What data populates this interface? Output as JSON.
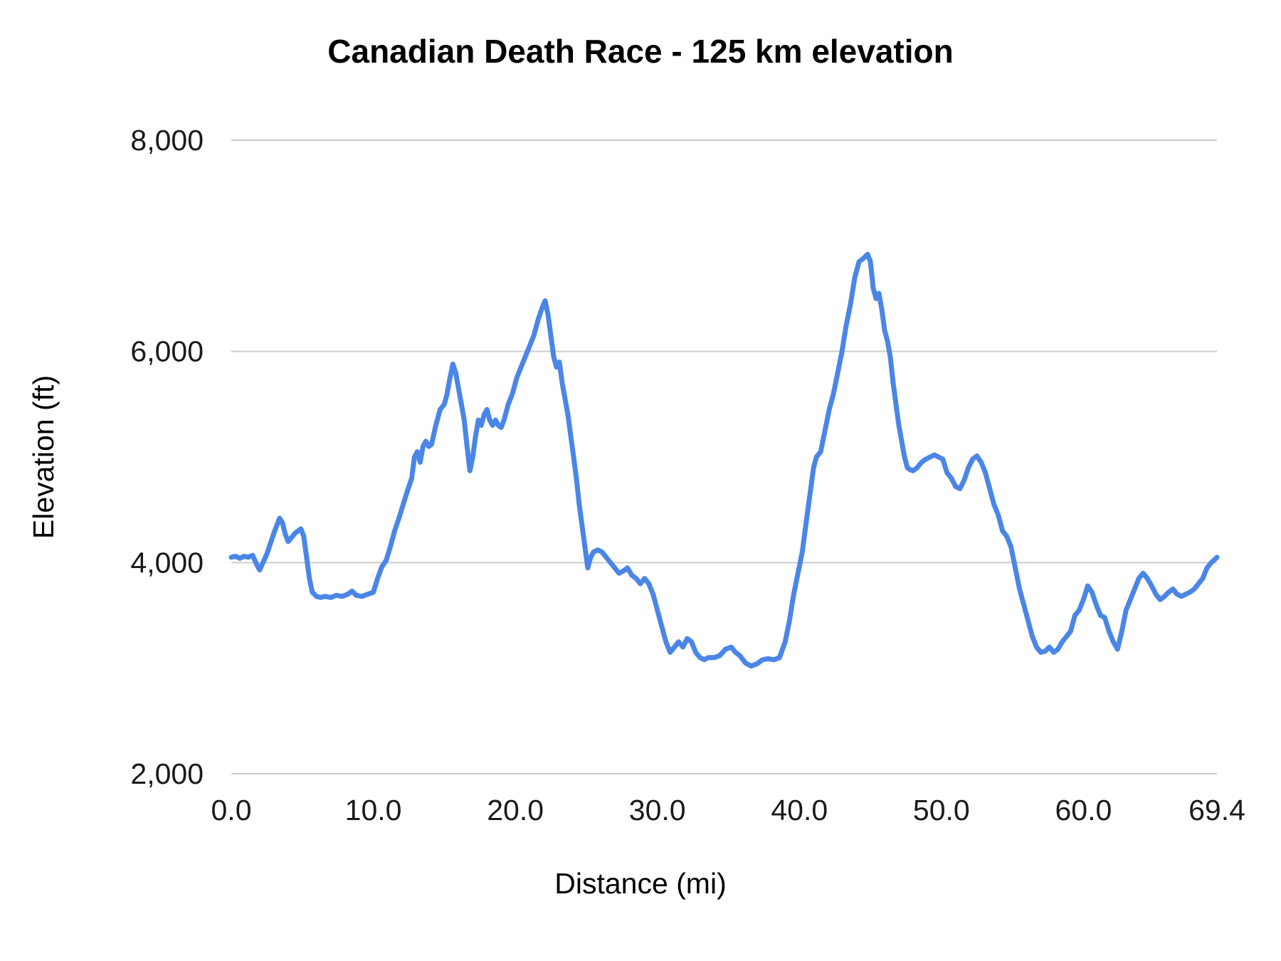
{
  "chart": {
    "title": "Canadian Death Race - 125 km elevation",
    "x_axis_label": "Distance (mi)",
    "y_axis_label": "Elevation (ft)"
  },
  "chart_data": {
    "type": "line",
    "title": "Canadian Death Race - 125 km elevation",
    "xlabel": "Distance (mi)",
    "ylabel": "Elevation (ft)",
    "xlim": [
      0,
      69.4
    ],
    "ylim": [
      2000,
      8000
    ],
    "grid": "horizontal",
    "legend": "none",
    "line_color": "#4a86e8",
    "grid_color": "#cccccc",
    "x_ticks": [
      {
        "value": 0,
        "label": "0.0"
      },
      {
        "value": 10,
        "label": "10.0"
      },
      {
        "value": 20,
        "label": "20.0"
      },
      {
        "value": 30,
        "label": "30.0"
      },
      {
        "value": 40,
        "label": "40.0"
      },
      {
        "value": 50,
        "label": "50.0"
      },
      {
        "value": 60,
        "label": "60.0"
      },
      {
        "value": 69.4,
        "label": "69.4"
      }
    ],
    "y_ticks": [
      {
        "value": 2000,
        "label": "2,000"
      },
      {
        "value": 4000,
        "label": "4,000"
      },
      {
        "value": 6000,
        "label": "6,000"
      },
      {
        "value": 8000,
        "label": "8,000"
      }
    ],
    "series": [
      {
        "name": "Elevation (ft)",
        "points": [
          [
            0.0,
            4050
          ],
          [
            0.3,
            4060
          ],
          [
            0.6,
            4040
          ],
          [
            0.9,
            4060
          ],
          [
            1.2,
            4050
          ],
          [
            1.5,
            4070
          ],
          [
            1.8,
            3980
          ],
          [
            2.0,
            3930
          ],
          [
            2.2,
            3990
          ],
          [
            2.5,
            4080
          ],
          [
            2.8,
            4200
          ],
          [
            3.0,
            4280
          ],
          [
            3.2,
            4350
          ],
          [
            3.4,
            4420
          ],
          [
            3.6,
            4380
          ],
          [
            3.8,
            4270
          ],
          [
            4.0,
            4200
          ],
          [
            4.2,
            4230
          ],
          [
            4.5,
            4280
          ],
          [
            4.7,
            4300
          ],
          [
            4.9,
            4320
          ],
          [
            5.1,
            4250
          ],
          [
            5.3,
            4050
          ],
          [
            5.5,
            3850
          ],
          [
            5.7,
            3720
          ],
          [
            6.0,
            3680
          ],
          [
            6.3,
            3670
          ],
          [
            6.6,
            3680
          ],
          [
            7.0,
            3670
          ],
          [
            7.4,
            3690
          ],
          [
            7.8,
            3680
          ],
          [
            8.2,
            3700
          ],
          [
            8.5,
            3730
          ],
          [
            8.8,
            3690
          ],
          [
            9.2,
            3680
          ],
          [
            9.6,
            3700
          ],
          [
            10.0,
            3720
          ],
          [
            10.3,
            3850
          ],
          [
            10.6,
            3960
          ],
          [
            10.9,
            4020
          ],
          [
            11.2,
            4150
          ],
          [
            11.5,
            4300
          ],
          [
            11.8,
            4420
          ],
          [
            12.1,
            4550
          ],
          [
            12.4,
            4680
          ],
          [
            12.7,
            4800
          ],
          [
            12.9,
            5000
          ],
          [
            13.1,
            5050
          ],
          [
            13.3,
            4950
          ],
          [
            13.5,
            5100
          ],
          [
            13.7,
            5150
          ],
          [
            13.9,
            5100
          ],
          [
            14.1,
            5120
          ],
          [
            14.4,
            5300
          ],
          [
            14.7,
            5450
          ],
          [
            15.0,
            5500
          ],
          [
            15.2,
            5600
          ],
          [
            15.4,
            5750
          ],
          [
            15.6,
            5880
          ],
          [
            15.8,
            5800
          ],
          [
            16.0,
            5650
          ],
          [
            16.2,
            5500
          ],
          [
            16.4,
            5350
          ],
          [
            16.6,
            5100
          ],
          [
            16.8,
            4870
          ],
          [
            17.0,
            5000
          ],
          [
            17.2,
            5200
          ],
          [
            17.4,
            5350
          ],
          [
            17.6,
            5300
          ],
          [
            17.8,
            5400
          ],
          [
            18.0,
            5450
          ],
          [
            18.2,
            5350
          ],
          [
            18.4,
            5300
          ],
          [
            18.6,
            5350
          ],
          [
            18.8,
            5300
          ],
          [
            19.0,
            5280
          ],
          [
            19.2,
            5350
          ],
          [
            19.5,
            5500
          ],
          [
            19.8,
            5600
          ],
          [
            20.1,
            5750
          ],
          [
            20.4,
            5850
          ],
          [
            20.7,
            5950
          ],
          [
            21.0,
            6050
          ],
          [
            21.3,
            6150
          ],
          [
            21.6,
            6300
          ],
          [
            21.9,
            6420
          ],
          [
            22.1,
            6480
          ],
          [
            22.3,
            6350
          ],
          [
            22.5,
            6150
          ],
          [
            22.7,
            5950
          ],
          [
            22.9,
            5850
          ],
          [
            23.1,
            5900
          ],
          [
            23.3,
            5700
          ],
          [
            23.5,
            5550
          ],
          [
            23.7,
            5400
          ],
          [
            23.9,
            5200
          ],
          [
            24.1,
            5000
          ],
          [
            24.3,
            4800
          ],
          [
            24.5,
            4550
          ],
          [
            24.7,
            4350
          ],
          [
            24.9,
            4150
          ],
          [
            25.1,
            3950
          ],
          [
            25.3,
            4050
          ],
          [
            25.5,
            4100
          ],
          [
            25.8,
            4120
          ],
          [
            26.1,
            4100
          ],
          [
            26.4,
            4050
          ],
          [
            26.7,
            4000
          ],
          [
            27.0,
            3950
          ],
          [
            27.3,
            3900
          ],
          [
            27.6,
            3920
          ],
          [
            27.9,
            3950
          ],
          [
            28.2,
            3880
          ],
          [
            28.5,
            3850
          ],
          [
            28.8,
            3800
          ],
          [
            29.1,
            3850
          ],
          [
            29.4,
            3800
          ],
          [
            29.7,
            3700
          ],
          [
            30.0,
            3550
          ],
          [
            30.3,
            3400
          ],
          [
            30.6,
            3250
          ],
          [
            30.9,
            3150
          ],
          [
            31.2,
            3200
          ],
          [
            31.5,
            3250
          ],
          [
            31.8,
            3200
          ],
          [
            32.1,
            3280
          ],
          [
            32.4,
            3250
          ],
          [
            32.7,
            3150
          ],
          [
            33.0,
            3100
          ],
          [
            33.3,
            3080
          ],
          [
            33.6,
            3100
          ],
          [
            34.0,
            3100
          ],
          [
            34.4,
            3120
          ],
          [
            34.8,
            3180
          ],
          [
            35.2,
            3200
          ],
          [
            35.5,
            3150
          ],
          [
            35.8,
            3120
          ],
          [
            36.2,
            3050
          ],
          [
            36.6,
            3020
          ],
          [
            37.0,
            3040
          ],
          [
            37.4,
            3080
          ],
          [
            37.8,
            3090
          ],
          [
            38.2,
            3080
          ],
          [
            38.6,
            3100
          ],
          [
            39.0,
            3250
          ],
          [
            39.3,
            3450
          ],
          [
            39.6,
            3700
          ],
          [
            39.9,
            3900
          ],
          [
            40.2,
            4100
          ],
          [
            40.5,
            4400
          ],
          [
            40.8,
            4700
          ],
          [
            41.0,
            4900
          ],
          [
            41.2,
            5000
          ],
          [
            41.5,
            5050
          ],
          [
            41.8,
            5250
          ],
          [
            42.1,
            5450
          ],
          [
            42.4,
            5600
          ],
          [
            42.7,
            5800
          ],
          [
            43.0,
            6000
          ],
          [
            43.3,
            6250
          ],
          [
            43.6,
            6450
          ],
          [
            43.9,
            6700
          ],
          [
            44.2,
            6850
          ],
          [
            44.5,
            6880
          ],
          [
            44.8,
            6920
          ],
          [
            45.0,
            6850
          ],
          [
            45.2,
            6600
          ],
          [
            45.4,
            6500
          ],
          [
            45.6,
            6550
          ],
          [
            45.8,
            6400
          ],
          [
            46.0,
            6200
          ],
          [
            46.2,
            6100
          ],
          [
            46.4,
            5950
          ],
          [
            46.6,
            5700
          ],
          [
            46.8,
            5500
          ],
          [
            47.0,
            5300
          ],
          [
            47.2,
            5150
          ],
          [
            47.4,
            5000
          ],
          [
            47.6,
            4900
          ],
          [
            47.8,
            4880
          ],
          [
            48.0,
            4870
          ],
          [
            48.3,
            4900
          ],
          [
            48.6,
            4950
          ],
          [
            48.9,
            4980
          ],
          [
            49.2,
            5000
          ],
          [
            49.5,
            5020
          ],
          [
            49.8,
            5000
          ],
          [
            50.1,
            4980
          ],
          [
            50.4,
            4850
          ],
          [
            50.7,
            4800
          ],
          [
            51.0,
            4720
          ],
          [
            51.3,
            4700
          ],
          [
            51.6,
            4780
          ],
          [
            51.9,
            4900
          ],
          [
            52.2,
            4980
          ],
          [
            52.5,
            5010
          ],
          [
            52.8,
            4950
          ],
          [
            53.1,
            4850
          ],
          [
            53.4,
            4700
          ],
          [
            53.7,
            4550
          ],
          [
            54.0,
            4450
          ],
          [
            54.3,
            4300
          ],
          [
            54.6,
            4250
          ],
          [
            54.9,
            4150
          ],
          [
            55.2,
            3950
          ],
          [
            55.5,
            3750
          ],
          [
            55.8,
            3600
          ],
          [
            56.1,
            3450
          ],
          [
            56.4,
            3300
          ],
          [
            56.7,
            3200
          ],
          [
            57.0,
            3150
          ],
          [
            57.3,
            3160
          ],
          [
            57.6,
            3200
          ],
          [
            57.9,
            3150
          ],
          [
            58.2,
            3180
          ],
          [
            58.5,
            3250
          ],
          [
            58.8,
            3300
          ],
          [
            59.1,
            3350
          ],
          [
            59.4,
            3500
          ],
          [
            59.7,
            3550
          ],
          [
            60.0,
            3650
          ],
          [
            60.3,
            3780
          ],
          [
            60.6,
            3720
          ],
          [
            60.9,
            3600
          ],
          [
            61.2,
            3500
          ],
          [
            61.5,
            3480
          ],
          [
            61.8,
            3350
          ],
          [
            62.1,
            3250
          ],
          [
            62.4,
            3180
          ],
          [
            62.7,
            3350
          ],
          [
            63.0,
            3550
          ],
          [
            63.3,
            3650
          ],
          [
            63.6,
            3750
          ],
          [
            63.9,
            3850
          ],
          [
            64.2,
            3900
          ],
          [
            64.5,
            3850
          ],
          [
            64.8,
            3780
          ],
          [
            65.1,
            3700
          ],
          [
            65.4,
            3650
          ],
          [
            65.7,
            3680
          ],
          [
            66.0,
            3720
          ],
          [
            66.3,
            3750
          ],
          [
            66.6,
            3700
          ],
          [
            66.9,
            3680
          ],
          [
            67.2,
            3700
          ],
          [
            67.5,
            3720
          ],
          [
            67.8,
            3750
          ],
          [
            68.1,
            3800
          ],
          [
            68.4,
            3850
          ],
          [
            68.7,
            3950
          ],
          [
            69.0,
            4000
          ],
          [
            69.4,
            4050
          ]
        ]
      }
    ]
  }
}
